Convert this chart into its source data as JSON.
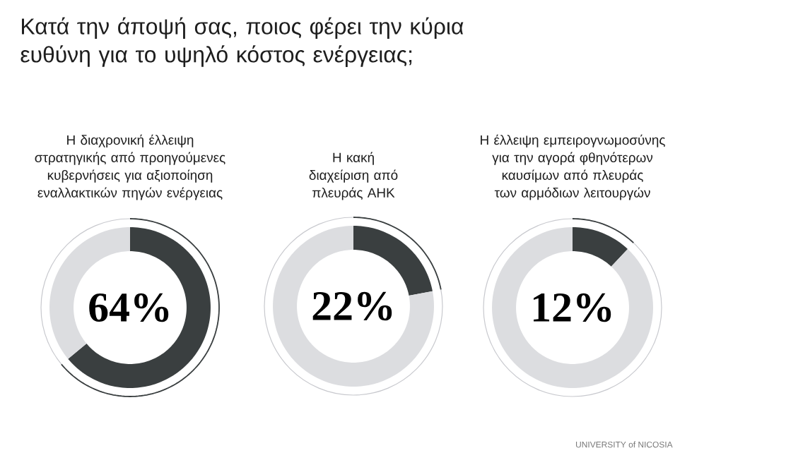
{
  "chart_data": [
    {
      "type": "donut",
      "title": "Κατά την άποψή σας, ποιος φέρει την κύρια ευθύνη για το υψηλό κόστος ενέργειας;",
      "subtitle": "Η διαχρονική έλλειψη στρατηγικής από προηγούμενες κυβερνήσεις για αξιοποίηση εναλλακτικών πηγών ενέργειας",
      "categories": [
        null,
        null
      ],
      "values": [
        64,
        36
      ],
      "colors": [
        "#3a3f40",
        "#dcdde0"
      ],
      "annotations": [
        "64%"
      ]
    },
    {
      "type": "donut",
      "subtitle": "Η κακή διαχείριση από πλευράς ΑΗΚ",
      "categories": [
        null,
        null
      ],
      "values": [
        22,
        78
      ],
      "colors": [
        "#3a3f40",
        "#dcdde0"
      ],
      "annotations": [
        "22%"
      ]
    },
    {
      "type": "donut",
      "subtitle": "Η έλλειψη εμπειρογνωμοσύνης για την αγορά φθηνότερων καυσίμων από πλευράς των αρμόδιων λειτουργών",
      "categories": [
        null,
        null
      ],
      "values": [
        12,
        88
      ],
      "colors": [
        "#3a3f40",
        "#dcdde0"
      ],
      "annotations": [
        "12%",
        "UNIVERSITY of NICOSIA"
      ]
    }
  ]
}
